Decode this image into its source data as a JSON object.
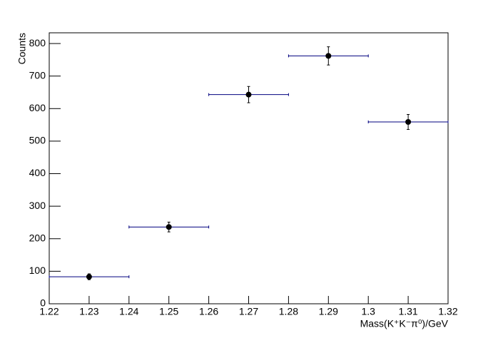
{
  "chart_data": {
    "type": "errorbar",
    "xlabel": "Mass(K⁺K⁻π⁰)/GeV",
    "ylabel": "Counts",
    "x": [
      1.23,
      1.25,
      1.27,
      1.29,
      1.31
    ],
    "values": [
      83,
      236,
      643,
      762,
      559
    ],
    "yerr": [
      9,
      15,
      25,
      28,
      23
    ],
    "xerr": [
      0.01,
      0.01,
      0.01,
      0.01,
      0.01
    ],
    "color": "#000000",
    "xerr_color": "#00007f",
    "xlim": [
      1.22,
      1.32
    ],
    "ylim": [
      0,
      833
    ],
    "xticks": [
      1.22,
      1.23,
      1.24,
      1.25,
      1.26,
      1.27,
      1.28,
      1.29,
      1.3,
      1.31,
      1.32
    ],
    "yticks": [
      0,
      100,
      200,
      300,
      400,
      500,
      600,
      700,
      800
    ]
  }
}
